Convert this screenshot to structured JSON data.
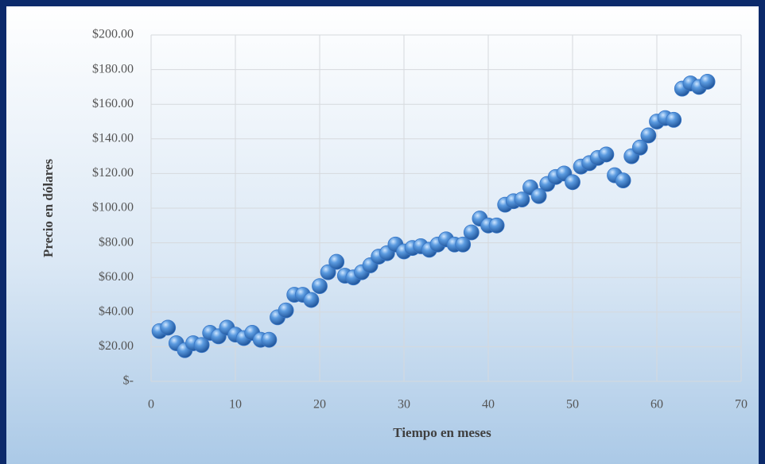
{
  "chart_data": {
    "type": "scatter",
    "xlabel": "Tiempo en meses",
    "ylabel": "Precio en dólares",
    "xlim": [
      0,
      70
    ],
    "xticks": [
      0,
      10,
      20,
      30,
      40,
      50,
      60,
      70
    ],
    "ylim": [
      0,
      200
    ],
    "yticks": [
      {
        "value": 0,
        "label": "$-"
      },
      {
        "value": 20,
        "label": "$20.00"
      },
      {
        "value": 40,
        "label": "$40.00"
      },
      {
        "value": 60,
        "label": "$60.00"
      },
      {
        "value": 80,
        "label": "$80.00"
      },
      {
        "value": 100,
        "label": "$100.00"
      },
      {
        "value": 120,
        "label": "$120.00"
      },
      {
        "value": 140,
        "label": "$140.00"
      },
      {
        "value": 160,
        "label": "$160.00"
      },
      {
        "value": 180,
        "label": "$180.00"
      },
      {
        "value": 200,
        "label": "$200.00"
      }
    ],
    "grid": true,
    "color": "#3a78c8",
    "x": [
      1,
      2,
      3,
      4,
      5,
      6,
      7,
      8,
      9,
      10,
      11,
      12,
      13,
      14,
      15,
      16,
      17,
      18,
      19,
      20,
      21,
      22,
      23,
      24,
      25,
      26,
      27,
      28,
      29,
      30,
      31,
      32,
      33,
      34,
      35,
      36,
      37,
      38,
      39,
      40,
      41,
      42,
      43,
      44,
      45,
      46,
      47,
      48,
      49,
      50,
      51,
      52,
      53,
      54,
      55,
      56,
      57,
      58,
      59,
      60,
      61,
      62,
      63,
      64,
      65,
      66
    ],
    "values": [
      29,
      31,
      22,
      18,
      22,
      21,
      28,
      26,
      31,
      27,
      25,
      28,
      24,
      24,
      37,
      41,
      50,
      50,
      47,
      55,
      63,
      69,
      61,
      60,
      63,
      67,
      72,
      74,
      79,
      75,
      77,
      78,
      76,
      79,
      82,
      79,
      79,
      86,
      94,
      90,
      90,
      102,
      104,
      105,
      112,
      107,
      114,
      118,
      120,
      115,
      124,
      126,
      129,
      131,
      119,
      116,
      130,
      135,
      142,
      150,
      152,
      151,
      169,
      172,
      170,
      173
    ]
  }
}
